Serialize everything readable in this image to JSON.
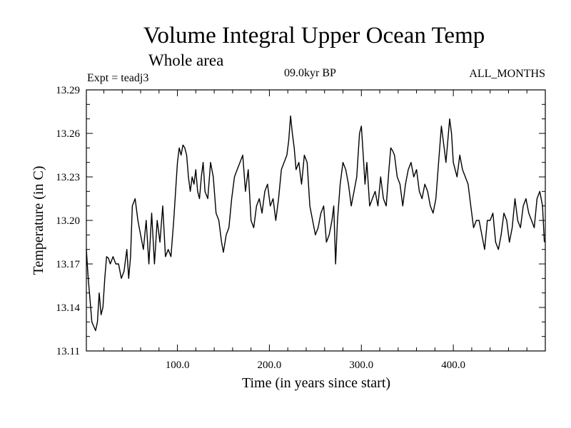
{
  "header": {
    "title": "Volume Integral Upper Ocean Temp",
    "subtitle": "Whole area",
    "experiment": "Expt = teadj3",
    "period": "09.0kyr BP",
    "months": "ALL_MONTHS"
  },
  "chart_data": {
    "type": "line",
    "title": "Volume Integral Upper Ocean Temp",
    "xlabel": "Time (in years since start)",
    "ylabel": "Temperature (in C)",
    "xlim": [
      1,
      500
    ],
    "ylim": [
      13.11,
      13.29
    ],
    "xticks": [
      100,
      200,
      300,
      400
    ],
    "xtick_labels": [
      "100.0",
      "200.0",
      "300.0",
      "400.0"
    ],
    "yticks": [
      13.11,
      13.14,
      13.17,
      13.2,
      13.23,
      13.26,
      13.29
    ],
    "ytick_labels": [
      "13.11",
      "13.14",
      "13.17",
      "13.20",
      "13.23",
      "13.26",
      "13.29"
    ],
    "grid": false,
    "series": [
      {
        "name": "Volume Integral Upper Ocean Temp",
        "x": [
          1,
          3,
          5,
          7,
          9,
          11,
          13,
          15,
          17,
          19,
          21,
          23,
          25,
          27,
          30,
          33,
          36,
          39,
          42,
          45,
          47,
          49,
          51,
          54,
          57,
          60,
          63,
          66,
          69,
          72,
          75,
          78,
          81,
          84,
          87,
          90,
          93,
          96,
          98,
          100,
          102,
          104,
          106,
          108,
          110,
          112,
          114,
          116,
          118,
          120,
          122,
          124,
          126,
          128,
          130,
          133,
          136,
          139,
          142,
          145,
          148,
          150,
          153,
          156,
          159,
          162,
          165,
          168,
          171,
          174,
          177,
          180,
          183,
          186,
          189,
          192,
          195,
          198,
          201,
          204,
          207,
          210,
          213,
          216,
          219,
          221,
          223,
          225,
          227,
          229,
          232,
          235,
          238,
          241,
          244,
          247,
          250,
          253,
          256,
          259,
          262,
          265,
          268,
          270,
          272,
          274,
          277,
          280,
          283,
          286,
          289,
          292,
          295,
          298,
          300,
          302,
          304,
          306,
          309,
          312,
          315,
          318,
          321,
          324,
          327,
          330,
          332,
          334,
          336,
          339,
          342,
          345,
          348,
          351,
          354,
          357,
          360,
          363,
          366,
          369,
          372,
          375,
          378,
          381,
          384,
          387,
          390,
          392,
          394,
          396,
          398,
          400,
          402,
          404,
          407,
          410,
          413,
          416,
          419,
          422,
          425,
          428,
          431,
          434,
          437,
          440,
          443,
          446,
          449,
          452,
          455,
          458,
          461,
          464,
          467,
          470,
          473,
          476,
          479,
          482,
          485,
          488,
          491,
          494,
          497,
          499
        ],
        "values": [
          13.18,
          13.16,
          13.145,
          13.13,
          13.127,
          13.124,
          13.13,
          13.15,
          13.135,
          13.14,
          13.16,
          13.175,
          13.174,
          13.17,
          13.175,
          13.17,
          13.17,
          13.16,
          13.165,
          13.18,
          13.16,
          13.175,
          13.21,
          13.215,
          13.2,
          13.19,
          13.18,
          13.2,
          13.17,
          13.205,
          13.17,
          13.2,
          13.185,
          13.21,
          13.175,
          13.18,
          13.175,
          13.2,
          13.22,
          13.24,
          13.25,
          13.245,
          13.252,
          13.25,
          13.245,
          13.23,
          13.22,
          13.23,
          13.225,
          13.235,
          13.22,
          13.215,
          13.23,
          13.24,
          13.22,
          13.215,
          13.24,
          13.23,
          13.205,
          13.2,
          13.185,
          13.178,
          13.19,
          13.195,
          13.215,
          13.23,
          13.235,
          13.24,
          13.245,
          13.22,
          13.235,
          13.2,
          13.195,
          13.21,
          13.215,
          13.205,
          13.22,
          13.225,
          13.21,
          13.215,
          13.2,
          13.215,
          13.235,
          13.24,
          13.245,
          13.255,
          13.272,
          13.26,
          13.25,
          13.235,
          13.24,
          13.225,
          13.245,
          13.24,
          13.21,
          13.2,
          13.19,
          13.195,
          13.205,
          13.21,
          13.185,
          13.19,
          13.2,
          13.21,
          13.17,
          13.2,
          13.225,
          13.24,
          13.235,
          13.225,
          13.21,
          13.22,
          13.23,
          13.26,
          13.265,
          13.245,
          13.225,
          13.24,
          13.21,
          13.215,
          13.22,
          13.21,
          13.23,
          13.215,
          13.21,
          13.235,
          13.25,
          13.248,
          13.245,
          13.23,
          13.225,
          13.21,
          13.225,
          13.235,
          13.24,
          13.23,
          13.235,
          13.22,
          13.215,
          13.225,
          13.22,
          13.21,
          13.205,
          13.215,
          13.24,
          13.265,
          13.25,
          13.24,
          13.255,
          13.27,
          13.26,
          13.24,
          13.235,
          13.23,
          13.245,
          13.235,
          13.23,
          13.225,
          13.21,
          13.195,
          13.2,
          13.2,
          13.19,
          13.18,
          13.2,
          13.2,
          13.205,
          13.185,
          13.18,
          13.19,
          13.205,
          13.2,
          13.185,
          13.195,
          13.215,
          13.2,
          13.195,
          13.21,
          13.215,
          13.205,
          13.2,
          13.195,
          13.215,
          13.22,
          13.21,
          13.185
        ]
      }
    ]
  }
}
